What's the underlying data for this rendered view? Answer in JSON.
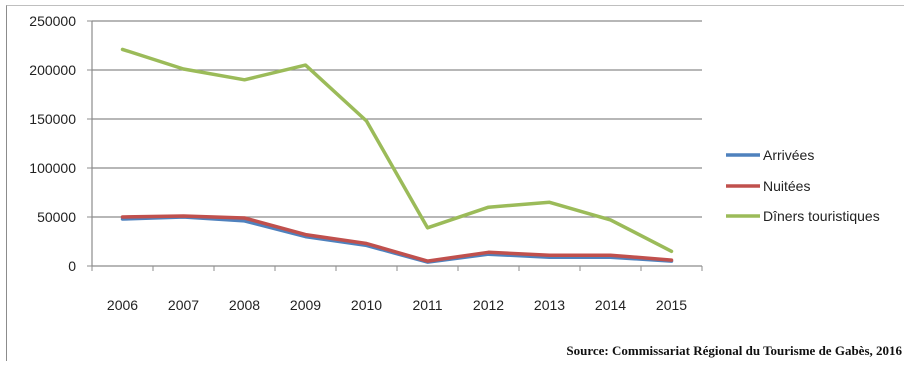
{
  "source_note": "Source: Commissariat Régional du Tourisme de Gabès, 2016",
  "chart_data": {
    "type": "line",
    "title": "",
    "xlabel": "",
    "ylabel": "",
    "x": [
      "2006",
      "2007",
      "2008",
      "2009",
      "2010",
      "2011",
      "2012",
      "2013",
      "2014",
      "2015"
    ],
    "ylim": [
      0,
      250000
    ],
    "yticks": [
      "0",
      "50000",
      "100000",
      "150000",
      "200000",
      "250000"
    ],
    "grid": true,
    "legend_position": "right",
    "series": [
      {
        "name": "Arrivées",
        "color": "#4f81bd",
        "values": [
          48000,
          50000,
          46000,
          30000,
          21000,
          4000,
          12000,
          9000,
          9000,
          5000
        ]
      },
      {
        "name": "Nuitées",
        "color": "#c0504d",
        "values": [
          50000,
          51000,
          49000,
          32000,
          23000,
          5000,
          14000,
          11000,
          11000,
          6000
        ]
      },
      {
        "name": "Dîners touristiques",
        "color": "#9bbb59",
        "values": [
          221000,
          201000,
          190000,
          205000,
          148000,
          39000,
          60000,
          65000,
          47000,
          15000
        ]
      }
    ]
  }
}
